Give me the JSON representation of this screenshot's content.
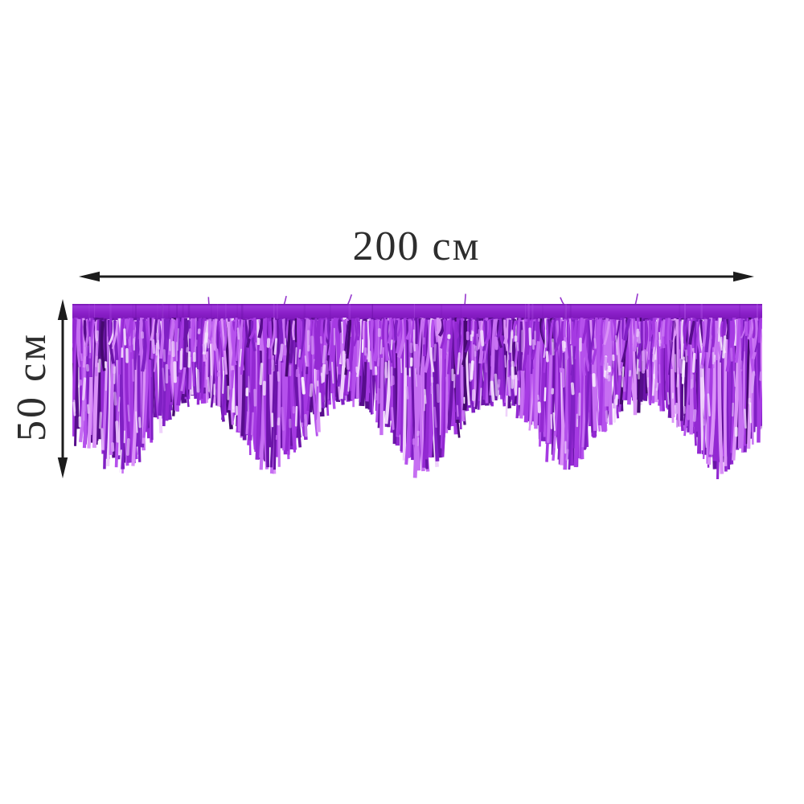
{
  "figure": {
    "description": "Purple metallic foil fringe garland shown with size dimension arrows",
    "background_color": "#ffffff"
  },
  "dimensions": {
    "width_label": "200 см",
    "height_label": "50 см",
    "arrow_color": "#1c1c1c",
    "label_color": "#2d2d2d"
  },
  "garland": {
    "band_color": "#8a1fc8",
    "band_color_light": "#9d36da",
    "band_color_dark": "#7312ae",
    "band_streak_dark": "#6a10a6",
    "band_streak_light": "#b65cea",
    "swag_count": 5,
    "tinsel_palette": [
      "#45096f",
      "#570d8c",
      "#6b14a8",
      "#8020c4",
      "#9329d2",
      "#a53ae2",
      "#b551ec",
      "#c66ff2",
      "#da92f7",
      "#efd2fb"
    ],
    "glint_colors": [
      "#efd2fb",
      "#f8ecfe",
      "#d9a0f6",
      "#c873f3"
    ]
  }
}
